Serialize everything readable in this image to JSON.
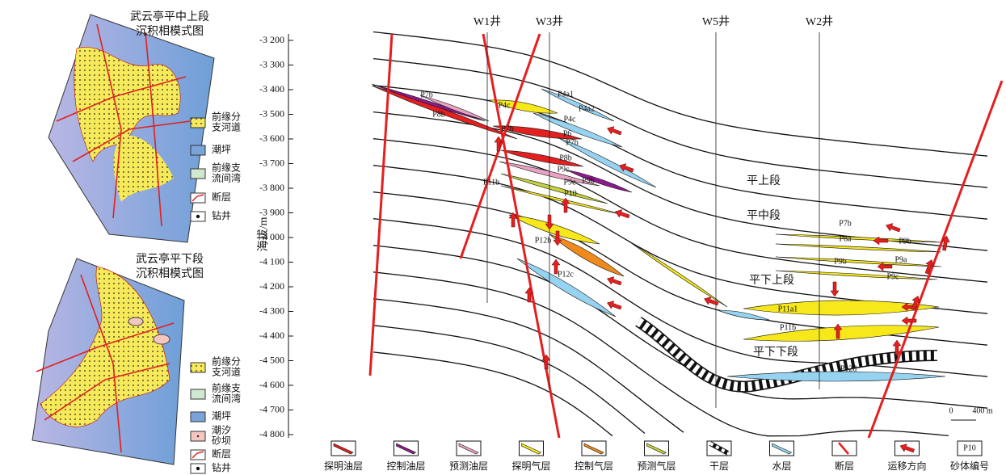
{
  "maps": [
    {
      "title": [
        "武云亭平中上段",
        "沉积相模式图"
      ],
      "legend": [
        [
          "前缘分",
          "支河道"
        ],
        [
          "潮坪"
        ],
        [
          "前缘支",
          "流间湾"
        ],
        [
          "断层"
        ],
        [
          "钻井"
        ]
      ]
    },
    {
      "title": [
        "武云亭平下段",
        "沉积相模式图"
      ],
      "legend": [
        [
          "前缘分",
          "支河道"
        ],
        [
          "前缘支",
          "流间湾"
        ],
        [
          "潮坪"
        ],
        [
          "潮汐",
          "砂坝"
        ],
        [
          "断层"
        ],
        [
          "钻井"
        ]
      ]
    }
  ],
  "section": {
    "axis_label": "海拔/m",
    "ticks": [
      {
        "value": -3200,
        "label": "-3 200"
      },
      {
        "value": -3300,
        "label": "-3 300"
      },
      {
        "value": -3400,
        "label": "-3 400"
      },
      {
        "value": -3500,
        "label": "-3 500"
      },
      {
        "value": -3600,
        "label": "-3 600"
      },
      {
        "value": -3700,
        "label": "-3 700"
      },
      {
        "value": -3800,
        "label": "-3 800"
      },
      {
        "value": -3900,
        "label": "-3 900"
      },
      {
        "value": -4000,
        "label": "-4 000"
      },
      {
        "value": -4100,
        "label": "-4 100"
      },
      {
        "value": -4200,
        "label": "-4 200"
      },
      {
        "value": -4300,
        "label": "-4 300"
      },
      {
        "value": -4400,
        "label": "-4 400"
      },
      {
        "value": -4500,
        "label": "-4 500"
      },
      {
        "value": -4600,
        "label": "-4 600"
      },
      {
        "value": -4700,
        "label": "-4 700"
      },
      {
        "value": -4800,
        "label": "-4 800"
      }
    ],
    "wells": [
      "W1井",
      "W3井",
      "W5井",
      "W2井"
    ],
    "members": [
      "平上段",
      "平中段",
      "平下上段",
      "平下下段"
    ],
    "sand_labels": [
      "P4a1",
      "P4a2",
      "P4c",
      "P4c",
      "P7b",
      "P8b",
      "P7b",
      "P6",
      "P7b",
      "P8b",
      "P9c",
      "P9b",
      "P9c",
      "P10",
      "P11b",
      "P12b",
      "P12c",
      "P7b",
      "P8a",
      "P9b",
      "P9b",
      "P9a",
      "P9c",
      "P11a1",
      "P11b",
      "P12d"
    ],
    "scale": [
      "0",
      "400 m"
    ]
  },
  "legend": [
    "探明油层",
    "控制油层",
    "预测油层",
    "探明气层",
    "控制气层",
    "预测气层",
    "干层",
    "水层",
    "断层",
    "运移方向",
    "砂体编号"
  ],
  "legend_sample": "P10"
}
